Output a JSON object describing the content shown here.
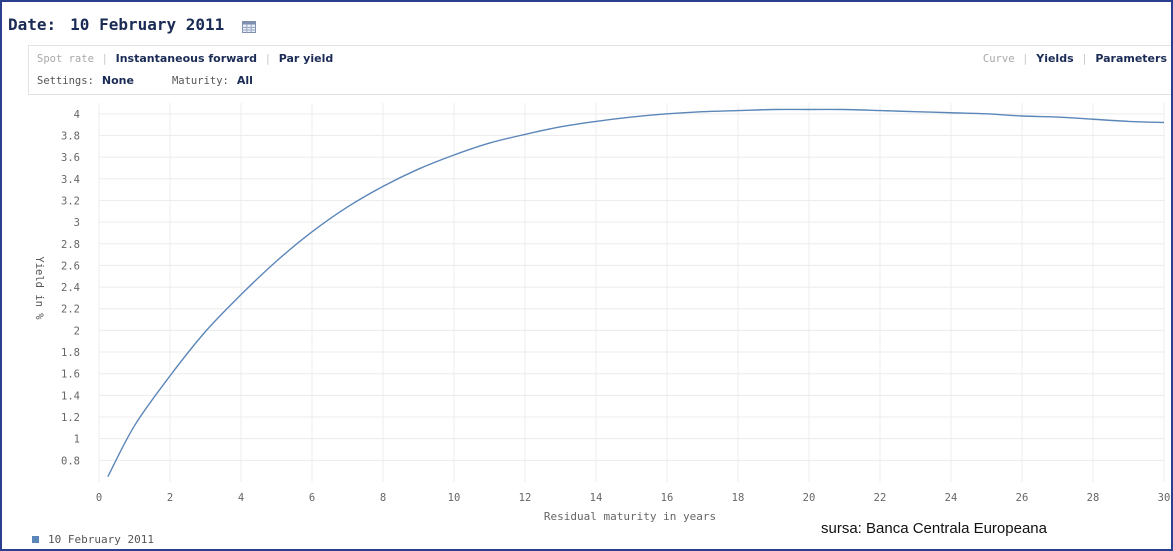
{
  "header": {
    "date_label": "Date:",
    "date_value": "10 February 2011",
    "calendar_icon": "calendar-icon"
  },
  "controls": {
    "tabs_left": [
      {
        "label": "Spot rate",
        "active": false
      },
      {
        "label": "Instantaneous forward",
        "active": true
      },
      {
        "label": "Par yield",
        "active": true
      }
    ],
    "tabs_right": [
      {
        "label": "Curve",
        "active": false
      },
      {
        "label": "Yields",
        "active": true
      },
      {
        "label": "Parameters",
        "active": true
      }
    ],
    "settings_label": "Settings:",
    "settings_value": "None",
    "maturity_label": "Maturity:",
    "maturity_value": "All"
  },
  "chart_data": {
    "type": "line",
    "xlabel": "Residual maturity in years",
    "ylabel": "Yield in %",
    "xlim": [
      0,
      30
    ],
    "ylim": [
      0.6,
      4.1
    ],
    "x_ticks": [
      "0",
      "2",
      "4",
      "6",
      "8",
      "10",
      "12",
      "14",
      "16",
      "18",
      "20",
      "22",
      "24",
      "26",
      "28",
      "30"
    ],
    "y_ticks": [
      "0.8",
      "1",
      "1.2",
      "1.4",
      "1.6",
      "1.8",
      "2",
      "2.2",
      "2.4",
      "2.6",
      "2.8",
      "3",
      "3.2",
      "3.4",
      "3.6",
      "3.8",
      "4"
    ],
    "grid": true,
    "legend_position": "bottom-left",
    "series": [
      {
        "name": "10 February 2011",
        "color": "#5b86b8",
        "x": [
          0.25,
          1,
          2,
          3,
          4,
          5,
          6,
          7,
          8,
          9,
          10,
          11,
          12,
          13,
          14,
          15,
          16,
          17,
          18,
          19,
          20,
          21,
          22,
          23,
          24,
          25,
          26,
          27,
          28,
          29,
          30
        ],
        "y": [
          0.65,
          1.12,
          1.58,
          1.99,
          2.33,
          2.64,
          2.91,
          3.14,
          3.33,
          3.49,
          3.62,
          3.73,
          3.81,
          3.88,
          3.93,
          3.97,
          4.0,
          4.02,
          4.03,
          4.04,
          4.04,
          4.04,
          4.03,
          4.02,
          4.01,
          4.0,
          3.98,
          3.97,
          3.95,
          3.93,
          3.92
        ]
      }
    ]
  },
  "source_note": "sursa: Banca Centrala Europeana"
}
